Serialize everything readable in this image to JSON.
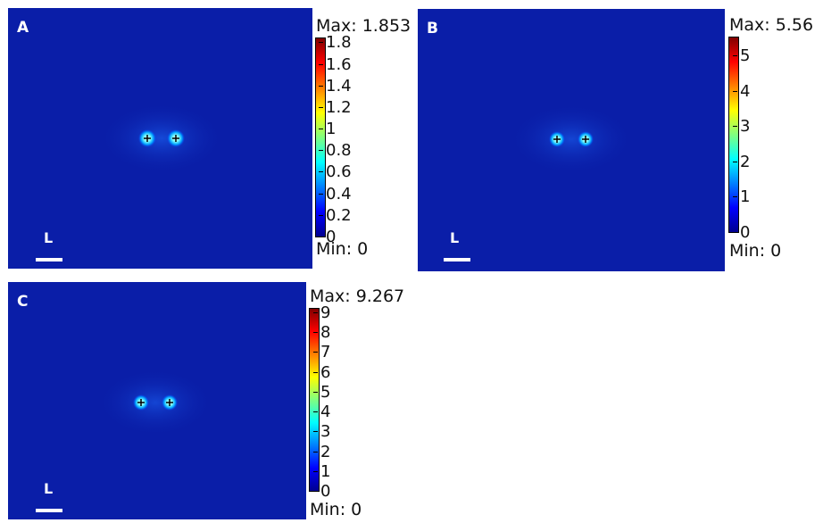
{
  "colors": {
    "field_background": "#0a1ea8",
    "colormap": [
      "#00008f",
      "#0000ff",
      "#0080ff",
      "#00ffff",
      "#80ff80",
      "#ffff00",
      "#ff8000",
      "#ff0000",
      "#800000"
    ]
  },
  "panels": [
    {
      "letter": "A",
      "scale_label": "L",
      "colorbar": {
        "max_label": "Max: 1.853",
        "min_label": "Min: 0",
        "max": 1.853,
        "min": 0,
        "ticks": [
          "1.8",
          "1.6",
          "1.4",
          "1.2",
          "1",
          "0.8",
          "0.6",
          "0.4",
          "0.2",
          "0"
        ],
        "tick_values": [
          1.8,
          1.6,
          1.4,
          1.2,
          1,
          0.8,
          0.6,
          0.4,
          0.2,
          0
        ]
      }
    },
    {
      "letter": "B",
      "scale_label": "L",
      "colorbar": {
        "max_label": "Max: 5.56",
        "min_label": "Min: 0",
        "max": 5.56,
        "min": 0,
        "ticks": [
          "5",
          "4",
          "3",
          "2",
          "1",
          "0"
        ],
        "tick_values": [
          5,
          4,
          3,
          2,
          1,
          0
        ]
      }
    },
    {
      "letter": "C",
      "scale_label": "L",
      "colorbar": {
        "max_label": "Max: 9.267",
        "min_label": "Min: 0",
        "max": 9.267,
        "min": 0,
        "ticks": [
          "9",
          "8",
          "7",
          "6",
          "5",
          "4",
          "3",
          "2",
          "1",
          "0"
        ],
        "tick_values": [
          9,
          8,
          7,
          6,
          5,
          4,
          3,
          2,
          1,
          0
        ]
      }
    }
  ]
}
